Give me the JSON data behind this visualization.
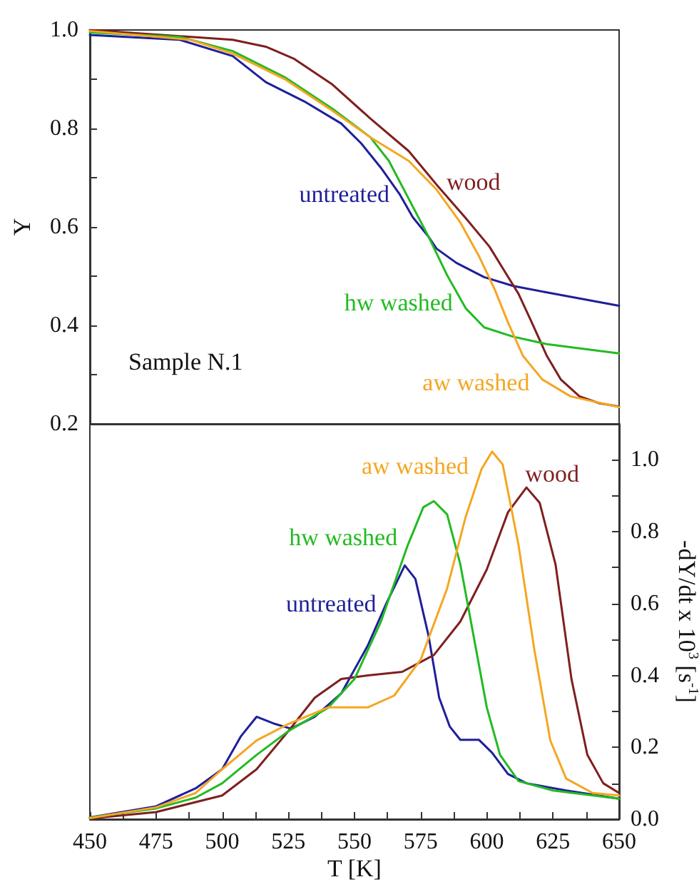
{
  "chart_data": [
    {
      "type": "line",
      "ylabel": "Y",
      "annotations": [
        "Sample N.1"
      ],
      "xlim": [
        450,
        650
      ],
      "ylim": [
        0.2,
        1.0
      ],
      "yticks": [
        0.2,
        {
          "value": 0.3,
          "label": null
        },
        0.4,
        {
          "value": 0.5,
          "label": null
        },
        0.6,
        {
          "value": 0.7,
          "label": null
        },
        0.8,
        {
          "value": 0.9,
          "label": null
        },
        {
          "value": 1.0,
          "label": "1.0"
        }
      ],
      "tick_labels": "y",
      "marker": "none",
      "line_style": "solid",
      "series": [
        {
          "name": "untreated",
          "color": "#1f1f9a",
          "x": [
            450,
            484,
            504,
            516.5,
            531,
            545,
            552.5,
            560,
            567,
            572,
            578,
            581,
            588.5,
            599,
            610,
            622.7,
            650
          ],
          "values": [
            0.99,
            0.98,
            0.947,
            0.894,
            0.855,
            0.81,
            0.77,
            0.72,
            0.667,
            0.62,
            0.58,
            0.556,
            0.527,
            0.498,
            0.48,
            0.467,
            0.44
          ]
        },
        {
          "name": "wood",
          "color": "#7f1f1f",
          "x": [
            450,
            504,
            516.5,
            527,
            541.7,
            556,
            570.5,
            581,
            592,
            601,
            606.5,
            612,
            617,
            622.7,
            628,
            635,
            642.5,
            650
          ],
          "values": [
            1.0,
            0.98,
            0.966,
            0.942,
            0.889,
            0.82,
            0.754,
            0.686,
            0.618,
            0.56,
            0.512,
            0.464,
            0.406,
            0.338,
            0.29,
            0.256,
            0.242,
            0.235
          ]
        },
        {
          "name": "hw washed",
          "color": "#22bb22",
          "x": [
            450,
            484,
            504,
            524,
            541.7,
            556,
            563,
            570.5,
            578,
            585,
            592,
            599,
            610,
            622.7,
            650
          ],
          "values": [
            0.995,
            0.986,
            0.957,
            0.903,
            0.84,
            0.782,
            0.734,
            0.657,
            0.58,
            0.502,
            0.435,
            0.396,
            0.377,
            0.362,
            0.343
          ]
        },
        {
          "name": "aw washed",
          "color": "#f5a623",
          "x": [
            450,
            488,
            504,
            524,
            541.7,
            556,
            570.5,
            581,
            590,
            597,
            603,
            608,
            613.7,
            621,
            631.6,
            650
          ],
          "values": [
            0.998,
            0.98,
            0.952,
            0.899,
            0.836,
            0.782,
            0.734,
            0.676,
            0.609,
            0.541,
            0.473,
            0.406,
            0.338,
            0.29,
            0.256,
            0.234
          ]
        }
      ]
    },
    {
      "type": "line",
      "xlabel": "T [K]",
      "y2label": "-dY/dt x 10$^{3}$ [s$^{-1}$]",
      "xlim": [
        450,
        650
      ],
      "xticks": [
        450,
        {
          "value": 462.5,
          "label": null
        },
        475,
        {
          "value": 487.5,
          "label": null
        },
        500,
        {
          "value": 512.5,
          "label": null
        },
        525,
        {
          "value": 537.5,
          "label": null
        },
        550,
        {
          "value": 562.5,
          "label": null
        },
        575,
        {
          "value": 587.5,
          "label": null
        },
        600,
        {
          "value": 612.5,
          "label": null
        },
        625,
        {
          "value": 637.5,
          "label": null
        },
        650
      ],
      "y2lim": [
        0,
        1.1
      ],
      "y2ticks": [
        {
          "value": 0,
          "label": "0.0"
        },
        {
          "value": 0.1,
          "label": null
        },
        0.2,
        {
          "value": 0.3,
          "label": null
        },
        0.4,
        {
          "value": 0.5,
          "label": null
        },
        0.6,
        {
          "value": 0.7,
          "label": null
        },
        0.8,
        {
          "value": 0.9,
          "label": null
        },
        {
          "value": 1.0,
          "label": "1.0"
        }
      ],
      "marker": "none",
      "line_style": "solid",
      "series": [
        {
          "name": "untreated",
          "color": "#1f1f9a",
          "axis": "y2",
          "x": [
            450,
            475,
            490,
            500,
            507,
            513,
            520,
            526,
            535,
            545,
            555,
            562,
            569,
            573,
            578,
            582,
            586,
            590,
            597,
            602,
            608,
            615,
            630,
            650
          ],
          "values": [
            0.005,
            0.036,
            0.086,
            0.139,
            0.23,
            0.285,
            0.265,
            0.252,
            0.285,
            0.35,
            0.483,
            0.6,
            0.706,
            0.669,
            0.51,
            0.338,
            0.258,
            0.221,
            0.221,
            0.185,
            0.126,
            0.1,
            0.08,
            0.057
          ]
        },
        {
          "name": "wood",
          "color": "#7f1f1f",
          "axis": "y2",
          "x": [
            450,
            475,
            500,
            513,
            525,
            535,
            545,
            555,
            568,
            580,
            590,
            600,
            608,
            615,
            620,
            626,
            632,
            638,
            644,
            650
          ],
          "values": [
            0.002,
            0.02,
            0.066,
            0.139,
            0.245,
            0.338,
            0.39,
            0.4,
            0.41,
            0.457,
            0.55,
            0.695,
            0.854,
            0.923,
            0.88,
            0.708,
            0.39,
            0.179,
            0.1,
            0.073
          ]
        },
        {
          "name": "hw washed",
          "color": "#22bb22",
          "axis": "y2",
          "x": [
            450,
            475,
            490,
            500,
            513,
            525,
            540,
            550,
            560,
            570,
            576,
            580,
            585,
            590,
            595,
            600,
            605,
            612,
            625,
            650
          ],
          "values": [
            0.005,
            0.03,
            0.06,
            0.1,
            0.179,
            0.245,
            0.31,
            0.39,
            0.55,
            0.76,
            0.868,
            0.885,
            0.848,
            0.709,
            0.51,
            0.311,
            0.179,
            0.106,
            0.08,
            0.057
          ]
        },
        {
          "name": "aw washed",
          "color": "#f5a623",
          "axis": "y2",
          "x": [
            450,
            475,
            490,
            500,
            513,
            525,
            540,
            555,
            565,
            575,
            585,
            592,
            598,
            602,
            606,
            612,
            618,
            624,
            630,
            640,
            650
          ],
          "values": [
            0.003,
            0.033,
            0.073,
            0.139,
            0.219,
            0.265,
            0.311,
            0.311,
            0.344,
            0.444,
            0.642,
            0.841,
            0.974,
            1.023,
            0.987,
            0.762,
            0.47,
            0.219,
            0.113,
            0.073,
            0.066
          ]
        }
      ]
    }
  ]
}
